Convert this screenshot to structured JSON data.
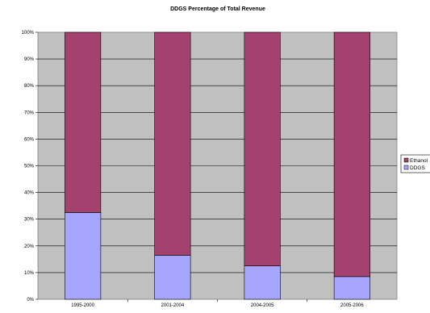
{
  "chart_data": {
    "type": "bar",
    "stacked": true,
    "title": "DDGS Percentage of Total Revenue",
    "xlabel": "",
    "ylabel": "",
    "categories": [
      "1995-2000",
      "2001-2004",
      "2004-2005",
      "2005-2006"
    ],
    "series": [
      {
        "name": "DDGS",
        "values": [
          32.5,
          16.5,
          12.5,
          8.5
        ],
        "color": "#a6a6ff"
      },
      {
        "name": "Ethanol",
        "values": [
          67.5,
          83.5,
          87.5,
          91.5
        ],
        "color": "#a5416e"
      }
    ],
    "ylim": [
      0,
      100
    ],
    "y_ticks": [
      "0%",
      "10%",
      "20%",
      "30%",
      "40%",
      "50%",
      "60%",
      "70%",
      "80%",
      "90%",
      "100%"
    ],
    "grid": true,
    "plot_background": "#c0c0c0",
    "legend": {
      "placement": "right",
      "entries": [
        "Ethanol",
        "DDGS"
      ]
    }
  }
}
